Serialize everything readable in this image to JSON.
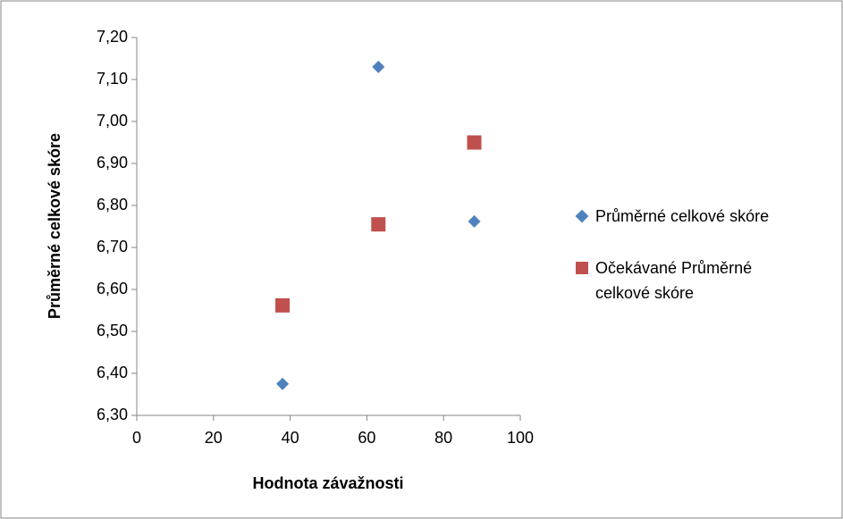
{
  "chart_data": {
    "type": "scatter",
    "x_label": "Hodnota závažnosti",
    "y_label": "Průměrné celkové skóre",
    "series": [
      {
        "name": "Průměrné celkové skóre",
        "color": "#4f81bd",
        "marker": "diamond",
        "x": [
          38,
          63,
          88
        ],
        "values": [
          6.375,
          7.13,
          6.762
        ]
      },
      {
        "name": "Očekávané Průměrné celkové skóre",
        "color": "#c0504d",
        "marker": "square",
        "x": [
          38,
          63,
          88
        ],
        "values": [
          6.562,
          6.755,
          6.95
        ]
      }
    ],
    "xlim": [
      0,
      100
    ],
    "xticks": [
      0,
      20,
      40,
      60,
      80,
      100
    ],
    "ylim": [
      6.3,
      7.2
    ],
    "yticks": [
      {
        "value": 6.3,
        "label": "6,30"
      },
      {
        "value": 6.4,
        "label": "6,40"
      },
      {
        "value": 6.5,
        "label": "6,50"
      },
      {
        "value": 6.6,
        "label": "6,60"
      },
      {
        "value": 6.7,
        "label": "6,70"
      },
      {
        "value": 6.8,
        "label": "6,80"
      },
      {
        "value": 6.9,
        "label": "6,90"
      },
      {
        "value": 7.0,
        "label": "7,00"
      },
      {
        "value": 7.1,
        "label": "7,10"
      },
      {
        "value": 7.2,
        "label": "7,20"
      }
    ],
    "grid": false,
    "legend": "right"
  }
}
